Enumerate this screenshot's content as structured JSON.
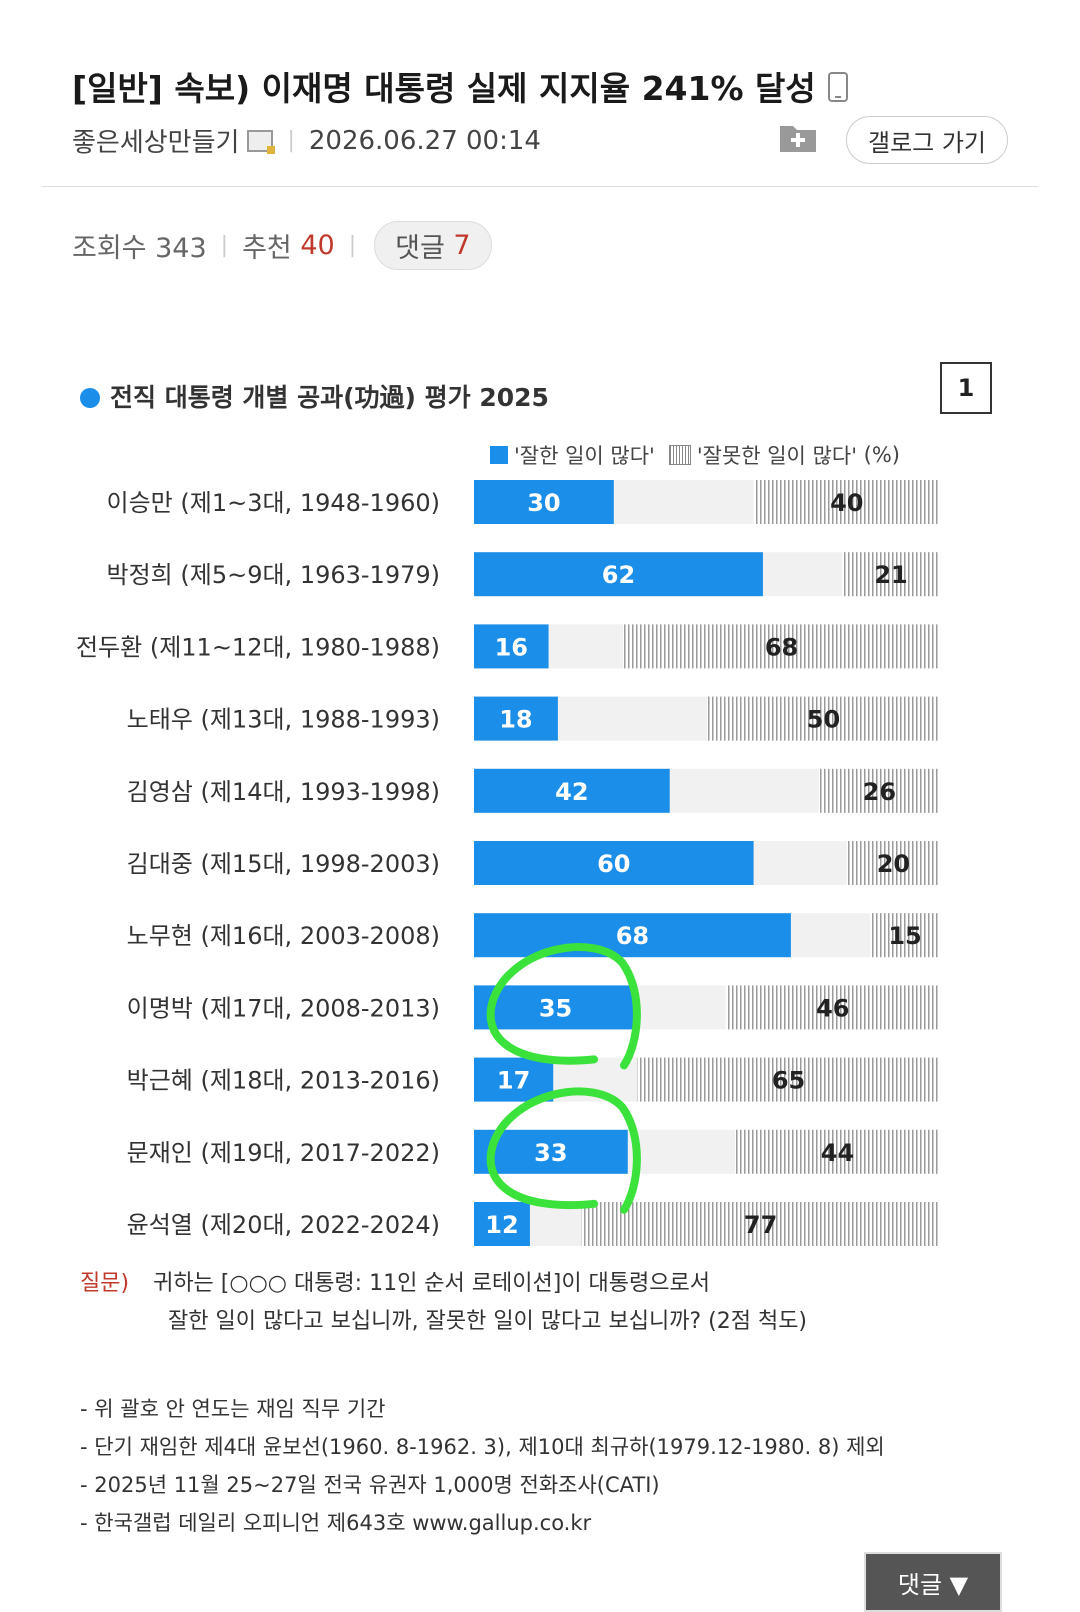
{
  "post": {
    "title": "[일반] 속보) 이재명 대통령 실제 지지율 241% 달성",
    "author": "좋은세상만들기",
    "date": "2026.06.27 00:14",
    "gallery_button": "갤로그 가기",
    "views_label": "조회수 343",
    "recommend_label": "추천",
    "recommend_value": "40",
    "comment_label": "댓글",
    "comment_value": "7"
  },
  "chart": {
    "title": "전직 대통령 개별 공과(功過) 평가 2025",
    "page_number": "1",
    "legend_good": "'잘한 일이 많다'",
    "legend_bad": "'잘못한 일이 많다'",
    "legend_unit": "(%)",
    "colors": {
      "good": "#1a8ee8",
      "bad_hatch": "#999999",
      "middle": "#f1f1f1",
      "highlight": "#3be23b"
    }
  },
  "chart_data": {
    "type": "bar",
    "orientation": "horizontal-stacked",
    "categories": [
      "이승만 (제1~3대, 1948-1960)",
      "박정희 (제5~9대, 1963-1979)",
      "전두환 (제11~12대, 1980-1988)",
      "노태우 (제13대, 1988-1993)",
      "김영삼 (제14대, 1993-1998)",
      "김대중 (제15대, 1998-2003)",
      "노무현 (제16대, 2003-2008)",
      "이명박 (제17대, 2008-2013)",
      "박근혜 (제18대, 2013-2016)",
      "문재인 (제19대, 2017-2022)",
      "윤석열 (제20대, 2022-2024)"
    ],
    "series": [
      {
        "name": "'잘한 일이 많다'",
        "values": [
          30,
          62,
          16,
          18,
          42,
          60,
          68,
          35,
          17,
          33,
          12
        ]
      },
      {
        "name": "'잘못한 일이 많다'",
        "values": [
          40,
          21,
          68,
          50,
          26,
          20,
          15,
          46,
          65,
          44,
          77
        ]
      }
    ],
    "xlim": [
      0,
      100
    ],
    "highlighted": [
      "이명박 (제17대, 2008-2013)",
      "문재인 (제19대, 2017-2022)"
    ]
  },
  "notes": {
    "question_label": "질문)",
    "question_line1": "귀하는 [○○○ 대통령: 11인 순서 로테이션]이 대통령으로서",
    "question_line2": "잘한 일이 많다고 보십니까, 잘못한 일이 많다고 보십니까? (2점 척도)",
    "footnote1": "- 위 괄호 안 연도는 재임 직무 기간",
    "footnote2": "- 단기 재임한 제4대 윤보선(1960. 8-1962. 3), 제10대 최규하(1979.12-1980. 8) 제외",
    "footnote3": "- 2025년 11월 25~27일 전국 유권자 1,000명 전화조사(CATI)",
    "footnote4": "- 한국갤럽 데일리 오피니언 제643호 www.gallup.co.kr"
  },
  "floating": {
    "comment_button": "댓글 ▼"
  }
}
